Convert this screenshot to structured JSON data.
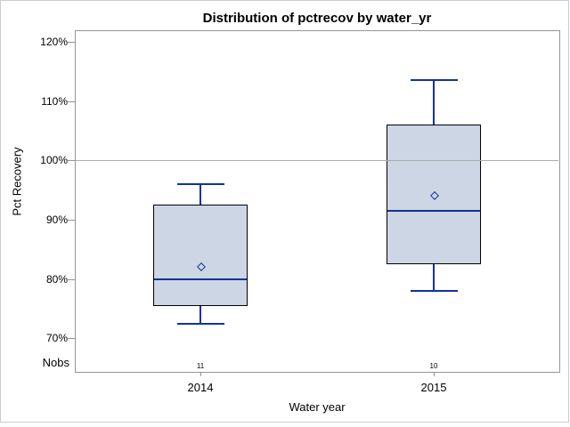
{
  "chart_data": {
    "type": "boxplot",
    "title": "Distribution of pctrecov by water_yr",
    "xlabel": "Water year",
    "ylabel": "Pct Recovery",
    "nobs_row_label": "Nobs",
    "categories": [
      "2014",
      "2015"
    ],
    "y_ticks": [
      70,
      80,
      90,
      100,
      110,
      120
    ],
    "y_tick_suffix": "%",
    "ylim": [
      64.3,
      121.9
    ],
    "reference_line_y": 100,
    "grid": false,
    "legend": "none",
    "series": [
      {
        "category": "2014",
        "nobs": "11",
        "whisker_low": 72.5,
        "q1": 75.5,
        "median": 80,
        "q3": 92.5,
        "whisker_high": 96,
        "mean": 82
      },
      {
        "category": "2015",
        "nobs": "10",
        "whisker_low": 78,
        "q1": 82.5,
        "median": 91.5,
        "q3": 106,
        "whisker_high": 113.5,
        "mean": 94
      }
    ],
    "colors": {
      "box_fill": "#ccd6e4",
      "box_border": "#000000",
      "line_blue": "#10339b",
      "reference_line": "#a9abad",
      "axis_frame": "#8f969b",
      "text": "#000000",
      "figure_border": "#c9cdd0"
    }
  }
}
